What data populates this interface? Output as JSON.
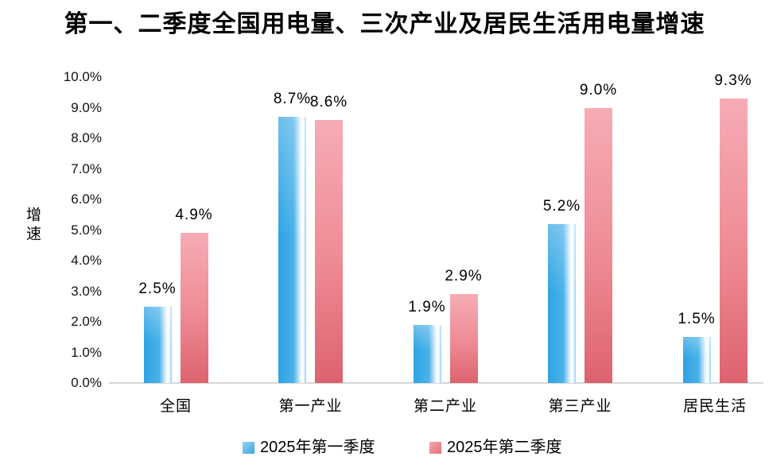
{
  "chart_data": {
    "type": "bar",
    "title": "第一、二季度全国用电量、三次产业及居民生活用电量增速",
    "ylabel": "增速",
    "xlabel": "",
    "categories": [
      "全国",
      "第一产业",
      "第二产业",
      "第三产业",
      "居民生活"
    ],
    "series": [
      {
        "name": "2025年第一季度",
        "values": [
          2.5,
          8.7,
          1.9,
          5.2,
          1.5
        ],
        "labels": [
          "2.5%",
          "8.7%",
          "1.9%",
          "5.2%",
          "1.5%"
        ],
        "color": "#3aa6e3"
      },
      {
        "name": "2025年第二季度",
        "values": [
          4.9,
          8.6,
          2.9,
          9.0,
          9.3
        ],
        "labels": [
          "4.9%",
          "8.6%",
          "2.9%",
          "9.0%",
          "9.3%"
        ],
        "color": "#e36e79"
      }
    ],
    "y_ticks": [
      "0.0%",
      "1.0%",
      "2.0%",
      "3.0%",
      "4.0%",
      "5.0%",
      "6.0%",
      "7.0%",
      "8.0%",
      "9.0%",
      "10.0%"
    ],
    "ylim": [
      0,
      10
    ],
    "grid": false,
    "legend_position": "bottom",
    "colors": {
      "q1_bar_main": "#3aa6e3",
      "q1_bar_highlight": "#ffffff",
      "q2_bar_top": "#f6acb5",
      "q2_bar_bottom": "#dc636e",
      "axis_line": "#d8d8d8",
      "text": "#000000",
      "background": "#ffffff"
    }
  }
}
